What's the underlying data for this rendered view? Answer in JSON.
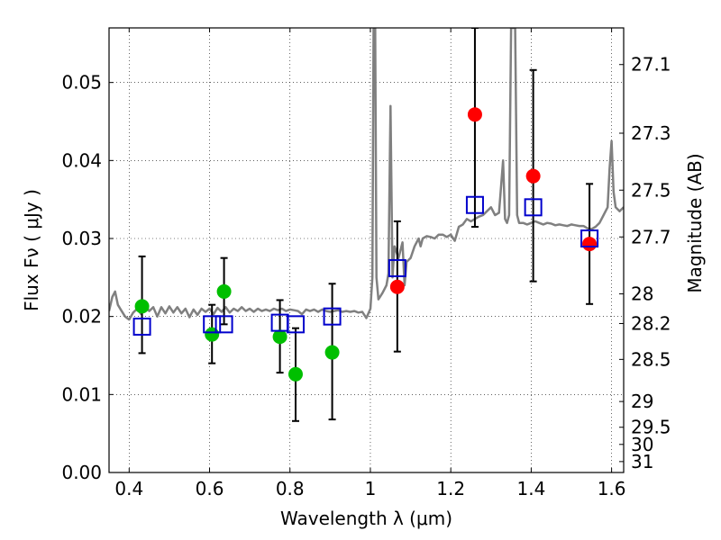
{
  "chart_data": {
    "type": "scatter",
    "xlabel": "Wavelength  λ (μm)",
    "ylabel": "Flux  Fν  ( μJy )",
    "y2label": "Magnitude (AB)",
    "xlim": [
      0.35,
      1.63
    ],
    "ylim": [
      0.0,
      0.057
    ],
    "grid": true,
    "x_ticks": [
      0.4,
      0.6,
      0.8,
      1.0,
      1.2,
      1.4,
      1.6
    ],
    "x_tick_labels": [
      "0.4",
      "0.6",
      "0.8",
      "1",
      "1.2",
      "1.4",
      "1.6"
    ],
    "y_ticks": [
      0.0,
      0.01,
      0.02,
      0.03,
      0.04,
      0.05
    ],
    "y_tick_labels": [
      "0.00",
      "0.01",
      "0.02",
      "0.03",
      "0.04",
      "0.05"
    ],
    "y2_ticks": [
      {
        "label": "27.1",
        "flux": 0.0523
      },
      {
        "label": "27.3",
        "flux": 0.0435
      },
      {
        "label": "27.5",
        "flux": 0.0362
      },
      {
        "label": "27.7",
        "flux": 0.0302
      },
      {
        "label": "28",
        "flux": 0.0229
      },
      {
        "label": "28.2",
        "flux": 0.0191
      },
      {
        "label": "28.5",
        "flux": 0.0145
      },
      {
        "label": "29",
        "flux": 0.0091
      },
      {
        "label": "29.5",
        "flux": 0.0058
      },
      {
        "label": "30",
        "flux": 0.0036
      },
      {
        "label": "31",
        "flux": 0.0014
      }
    ],
    "series": [
      {
        "kind": "line",
        "color": "#808080",
        "points": [
          [
            0.35,
            0.0207
          ],
          [
            0.358,
            0.0225
          ],
          [
            0.365,
            0.0232
          ],
          [
            0.372,
            0.0215
          ],
          [
            0.38,
            0.0208
          ],
          [
            0.39,
            0.02
          ],
          [
            0.4,
            0.0196
          ],
          [
            0.41,
            0.0205
          ],
          [
            0.42,
            0.021
          ],
          [
            0.43,
            0.0203
          ],
          [
            0.44,
            0.0214
          ],
          [
            0.45,
            0.0207
          ],
          [
            0.46,
            0.0212
          ],
          [
            0.47,
            0.02
          ],
          [
            0.48,
            0.0212
          ],
          [
            0.49,
            0.0204
          ],
          [
            0.5,
            0.0213
          ],
          [
            0.51,
            0.0205
          ],
          [
            0.52,
            0.0212
          ],
          [
            0.53,
            0.0204
          ],
          [
            0.54,
            0.021
          ],
          [
            0.55,
            0.0199
          ],
          [
            0.56,
            0.0209
          ],
          [
            0.57,
            0.0202
          ],
          [
            0.58,
            0.021
          ],
          [
            0.59,
            0.0206
          ],
          [
            0.6,
            0.021
          ],
          [
            0.61,
            0.0203
          ],
          [
            0.62,
            0.0211
          ],
          [
            0.63,
            0.0206
          ],
          [
            0.64,
            0.0212
          ],
          [
            0.65,
            0.0205
          ],
          [
            0.66,
            0.021
          ],
          [
            0.67,
            0.0207
          ],
          [
            0.68,
            0.0212
          ],
          [
            0.69,
            0.0207
          ],
          [
            0.7,
            0.021
          ],
          [
            0.71,
            0.0206
          ],
          [
            0.72,
            0.021
          ],
          [
            0.73,
            0.0207
          ],
          [
            0.74,
            0.0209
          ],
          [
            0.75,
            0.0207
          ],
          [
            0.76,
            0.021
          ],
          [
            0.77,
            0.0208
          ],
          [
            0.78,
            0.021
          ],
          [
            0.79,
            0.0207
          ],
          [
            0.8,
            0.0209
          ],
          [
            0.81,
            0.0208
          ],
          [
            0.82,
            0.0207
          ],
          [
            0.83,
            0.0203
          ],
          [
            0.84,
            0.0209
          ],
          [
            0.85,
            0.0207
          ],
          [
            0.86,
            0.0209
          ],
          [
            0.87,
            0.0206
          ],
          [
            0.88,
            0.0209
          ],
          [
            0.89,
            0.0207
          ],
          [
            0.9,
            0.0206
          ],
          [
            0.91,
            0.0207
          ],
          [
            0.92,
            0.0208
          ],
          [
            0.93,
            0.0206
          ],
          [
            0.94,
            0.0207
          ],
          [
            0.95,
            0.0206
          ],
          [
            0.96,
            0.0207
          ],
          [
            0.97,
            0.0205
          ],
          [
            0.98,
            0.0206
          ],
          [
            0.99,
            0.0198
          ],
          [
            1.0,
            0.021
          ],
          [
            1.005,
            0.025
          ],
          [
            1.008,
            0.057
          ],
          [
            1.012,
            0.057
          ],
          [
            1.015,
            0.025
          ],
          [
            1.02,
            0.0222
          ],
          [
            1.03,
            0.023
          ],
          [
            1.04,
            0.024
          ],
          [
            1.045,
            0.0255
          ],
          [
            1.05,
            0.047
          ],
          [
            1.055,
            0.025
          ],
          [
            1.06,
            0.029
          ],
          [
            1.07,
            0.0275
          ],
          [
            1.08,
            0.0295
          ],
          [
            1.085,
            0.024
          ],
          [
            1.09,
            0.027
          ],
          [
            1.1,
            0.0275
          ],
          [
            1.11,
            0.029
          ],
          [
            1.12,
            0.03
          ],
          [
            1.125,
            0.029
          ],
          [
            1.13,
            0.03
          ],
          [
            1.14,
            0.0303
          ],
          [
            1.15,
            0.0302
          ],
          [
            1.16,
            0.03
          ],
          [
            1.17,
            0.0305
          ],
          [
            1.18,
            0.0305
          ],
          [
            1.19,
            0.0302
          ],
          [
            1.2,
            0.0305
          ],
          [
            1.21,
            0.0297
          ],
          [
            1.22,
            0.0315
          ],
          [
            1.23,
            0.0318
          ],
          [
            1.24,
            0.0325
          ],
          [
            1.25,
            0.0322
          ],
          [
            1.26,
            0.0325
          ],
          [
            1.27,
            0.0328
          ],
          [
            1.28,
            0.033
          ],
          [
            1.29,
            0.0335
          ],
          [
            1.3,
            0.034
          ],
          [
            1.31,
            0.033
          ],
          [
            1.32,
            0.0333
          ],
          [
            1.33,
            0.04
          ],
          [
            1.335,
            0.0325
          ],
          [
            1.34,
            0.032
          ],
          [
            1.345,
            0.033
          ],
          [
            1.35,
            0.057
          ],
          [
            1.355,
            0.057
          ],
          [
            1.36,
            0.057
          ],
          [
            1.365,
            0.033
          ],
          [
            1.37,
            0.032
          ],
          [
            1.38,
            0.032
          ],
          [
            1.39,
            0.0318
          ],
          [
            1.4,
            0.032
          ],
          [
            1.41,
            0.0322
          ],
          [
            1.42,
            0.032
          ],
          [
            1.43,
            0.0318
          ],
          [
            1.44,
            0.032
          ],
          [
            1.45,
            0.0319
          ],
          [
            1.46,
            0.0317
          ],
          [
            1.47,
            0.0318
          ],
          [
            1.48,
            0.0317
          ],
          [
            1.49,
            0.0316
          ],
          [
            1.5,
            0.0318
          ],
          [
            1.51,
            0.0317
          ],
          [
            1.52,
            0.0316
          ],
          [
            1.53,
            0.0316
          ],
          [
            1.54,
            0.0313
          ],
          [
            1.55,
            0.0312
          ],
          [
            1.56,
            0.0315
          ],
          [
            1.57,
            0.032
          ],
          [
            1.58,
            0.033
          ],
          [
            1.59,
            0.034
          ],
          [
            1.595,
            0.039
          ],
          [
            1.6,
            0.0425
          ],
          [
            1.605,
            0.036
          ],
          [
            1.61,
            0.034
          ],
          [
            1.62,
            0.0335
          ],
          [
            1.63,
            0.034
          ]
        ]
      },
      {
        "kind": "markers",
        "marker": "circle",
        "color": "#00bf00",
        "points": [
          {
            "x": 0.432,
            "y": 0.0213,
            "yerr": [
              0.0153,
              0.0277
            ]
          },
          {
            "x": 0.606,
            "y": 0.0177,
            "yerr": [
              0.014,
              0.0215
            ]
          },
          {
            "x": 0.636,
            "y": 0.0232,
            "yerr": [
              0.019,
              0.0275
            ]
          },
          {
            "x": 0.775,
            "y": 0.0174,
            "yerr": [
              0.0128,
              0.0221
            ]
          },
          {
            "x": 0.814,
            "y": 0.0126,
            "yerr": [
              0.0066,
              0.0185
            ]
          },
          {
            "x": 0.905,
            "y": 0.0154,
            "yerr": [
              0.0068,
              0.0242
            ]
          }
        ]
      },
      {
        "kind": "markers",
        "marker": "circle",
        "color": "#ff0000",
        "points": [
          {
            "x": 1.067,
            "y": 0.0238,
            "yerr": [
              0.0155,
              0.0322
            ]
          },
          {
            "x": 1.26,
            "y": 0.0459,
            "yerr": [
              0.0315,
              0.057
            ]
          },
          {
            "x": 1.405,
            "y": 0.038,
            "yerr": [
              0.0245,
              0.0516
            ]
          },
          {
            "x": 1.545,
            "y": 0.0293,
            "yerr": [
              0.0216,
              0.037
            ]
          }
        ]
      },
      {
        "kind": "markers",
        "marker": "square-open",
        "color": "#0000cc",
        "points": [
          {
            "x": 0.432,
            "y": 0.0187
          },
          {
            "x": 0.606,
            "y": 0.019
          },
          {
            "x": 0.636,
            "y": 0.019
          },
          {
            "x": 0.775,
            "y": 0.0192
          },
          {
            "x": 0.814,
            "y": 0.019
          },
          {
            "x": 0.905,
            "y": 0.02
          },
          {
            "x": 1.067,
            "y": 0.0262
          },
          {
            "x": 1.26,
            "y": 0.0343
          },
          {
            "x": 1.405,
            "y": 0.034
          },
          {
            "x": 1.545,
            "y": 0.03
          }
        ]
      }
    ]
  }
}
